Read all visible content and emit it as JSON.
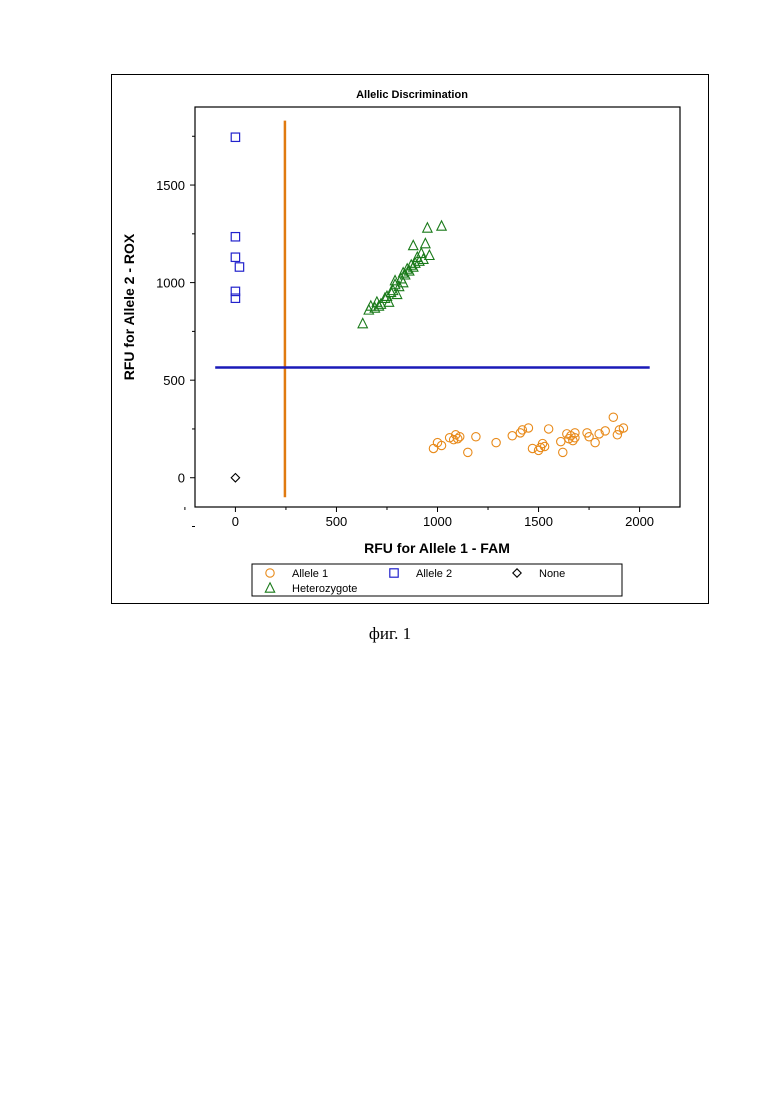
{
  "figure_caption": "фиг. 1",
  "chart_data": {
    "type": "scatter",
    "title": "Allelic Discrimination",
    "xlabel": "RFU for Allele 1 - FAM",
    "ylabel": "RFU for Allele 2 - ROX",
    "xlim": [
      -200,
      2200
    ],
    "ylim": [
      -150,
      1900
    ],
    "xticks": [
      0,
      500,
      1000,
      1500,
      2000
    ],
    "yticks": [
      0,
      500,
      1000,
      1500
    ],
    "grid": false,
    "legend_position": "bottom",
    "thresholds": {
      "vertical_x": 245,
      "vertical_color": "#e07a10",
      "horizontal_y": 565,
      "horizontal_color": "#1a1ab8",
      "horizontal_x_range": [
        -100,
        2050
      ],
      "vertical_y_range": [
        -100,
        1830
      ]
    },
    "series": [
      {
        "name": "Allele 1",
        "marker": "circle",
        "color": "#e88a1a",
        "points": [
          [
            980,
            150
          ],
          [
            1000,
            180
          ],
          [
            1020,
            165
          ],
          [
            1060,
            205
          ],
          [
            1080,
            195
          ],
          [
            1090,
            220
          ],
          [
            1100,
            200
          ],
          [
            1110,
            210
          ],
          [
            1150,
            130
          ],
          [
            1190,
            210
          ],
          [
            1290,
            180
          ],
          [
            1370,
            215
          ],
          [
            1410,
            230
          ],
          [
            1420,
            245
          ],
          [
            1450,
            255
          ],
          [
            1470,
            150
          ],
          [
            1500,
            140
          ],
          [
            1510,
            155
          ],
          [
            1520,
            175
          ],
          [
            1530,
            160
          ],
          [
            1550,
            250
          ],
          [
            1610,
            185
          ],
          [
            1620,
            130
          ],
          [
            1640,
            225
          ],
          [
            1650,
            200
          ],
          [
            1660,
            215
          ],
          [
            1670,
            190
          ],
          [
            1680,
            230
          ],
          [
            1680,
            205
          ],
          [
            1740,
            230
          ],
          [
            1750,
            210
          ],
          [
            1780,
            180
          ],
          [
            1800,
            225
          ],
          [
            1830,
            240
          ],
          [
            1870,
            310
          ],
          [
            1890,
            220
          ],
          [
            1900,
            245
          ],
          [
            1920,
            255
          ]
        ]
      },
      {
        "name": "Allele 2",
        "marker": "square",
        "color": "#2222cc",
        "points": [
          [
            0,
            1745
          ],
          [
            0,
            1235
          ],
          [
            0,
            1130
          ],
          [
            20,
            1080
          ],
          [
            0,
            955
          ],
          [
            0,
            920
          ]
        ]
      },
      {
        "name": "None",
        "marker": "diamond",
        "color": "#000000",
        "points": [
          [
            0,
            0
          ]
        ]
      },
      {
        "name": "Heterozygote",
        "marker": "triangle",
        "color": "#1a7a1a",
        "points": [
          [
            630,
            790
          ],
          [
            660,
            860
          ],
          [
            670,
            880
          ],
          [
            690,
            870
          ],
          [
            700,
            900
          ],
          [
            710,
            880
          ],
          [
            720,
            890
          ],
          [
            740,
            920
          ],
          [
            750,
            930
          ],
          [
            760,
            900
          ],
          [
            770,
            950
          ],
          [
            780,
            960
          ],
          [
            790,
            990
          ],
          [
            790,
            1010
          ],
          [
            800,
            940
          ],
          [
            810,
            980
          ],
          [
            820,
            1020
          ],
          [
            830,
            1050
          ],
          [
            830,
            1000
          ],
          [
            840,
            1040
          ],
          [
            850,
            1070
          ],
          [
            860,
            1060
          ],
          [
            870,
            1090
          ],
          [
            880,
            1080
          ],
          [
            880,
            1190
          ],
          [
            890,
            1100
          ],
          [
            900,
            1130
          ],
          [
            910,
            1110
          ],
          [
            920,
            1150
          ],
          [
            930,
            1120
          ],
          [
            940,
            1200
          ],
          [
            950,
            1280
          ],
          [
            960,
            1140
          ],
          [
            1020,
            1290
          ]
        ]
      }
    ]
  }
}
